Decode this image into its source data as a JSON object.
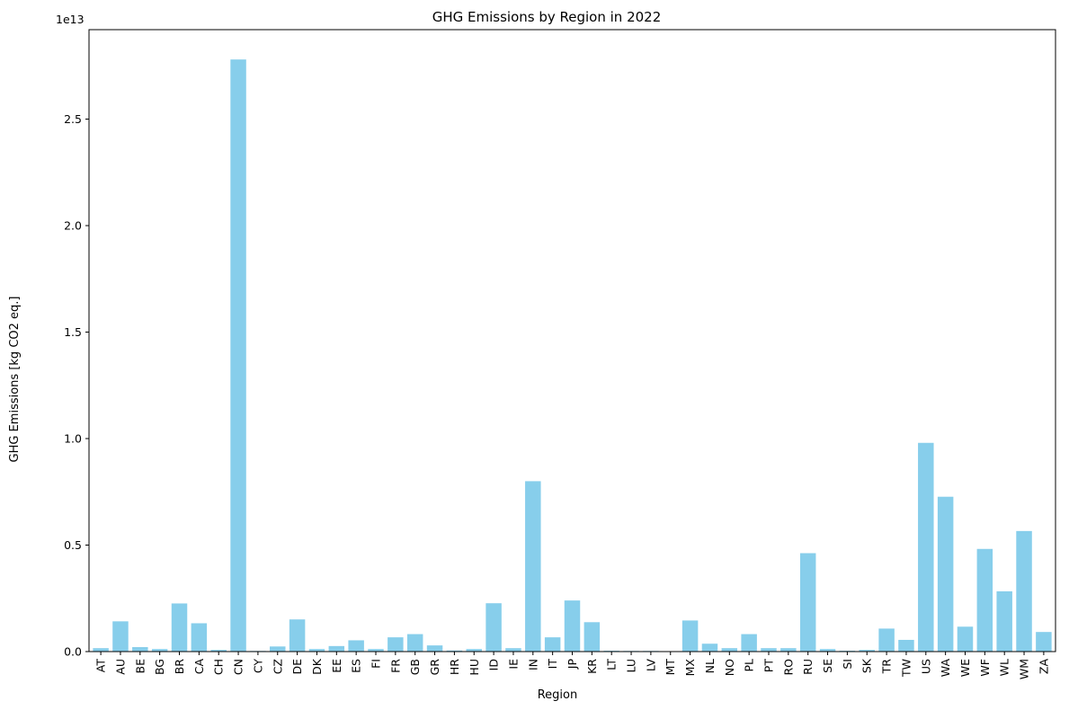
{
  "chart_data": {
    "type": "bar",
    "title": "GHG Emissions by Region in 2022",
    "xlabel": "Region",
    "ylabel": "GHG Emissions [kg CO2 eq.]",
    "y_offset_label": "1e13",
    "y_scale": 10000000000000.0,
    "ylim": [
      0,
      2.92
    ],
    "yticks": [
      0.0,
      0.5,
      1.0,
      1.5,
      2.0,
      2.5
    ],
    "ytick_labels": [
      "0.0",
      "0.5",
      "1.0",
      "1.5",
      "2.0",
      "2.5"
    ],
    "grid": false,
    "bar_color": "#87CEEB",
    "categories": [
      "AT",
      "AU",
      "BE",
      "BG",
      "BR",
      "CA",
      "CH",
      "CN",
      "CY",
      "CZ",
      "DE",
      "DK",
      "EE",
      "ES",
      "FI",
      "FR",
      "GB",
      "GR",
      "HR",
      "HU",
      "ID",
      "IE",
      "IN",
      "IT",
      "JP",
      "KR",
      "LT",
      "LU",
      "LV",
      "MT",
      "MX",
      "NL",
      "NO",
      "PL",
      "PT",
      "RO",
      "RU",
      "SE",
      "SI",
      "SK",
      "TR",
      "TW",
      "US",
      "WA",
      "WE",
      "WF",
      "WL",
      "WM",
      "ZA"
    ],
    "values": [
      0.016,
      0.142,
      0.021,
      0.012,
      0.226,
      0.133,
      0.008,
      2.78,
      0.003,
      0.024,
      0.151,
      0.012,
      0.026,
      0.053,
      0.012,
      0.067,
      0.082,
      0.029,
      0.005,
      0.012,
      0.227,
      0.016,
      0.8,
      0.067,
      0.24,
      0.138,
      0.004,
      0.003,
      0.003,
      0.001,
      0.146,
      0.037,
      0.016,
      0.082,
      0.016,
      0.016,
      0.462,
      0.012,
      0.004,
      0.008,
      0.108,
      0.055,
      0.98,
      0.727,
      0.117,
      0.482,
      0.283,
      0.566,
      0.092
    ]
  }
}
